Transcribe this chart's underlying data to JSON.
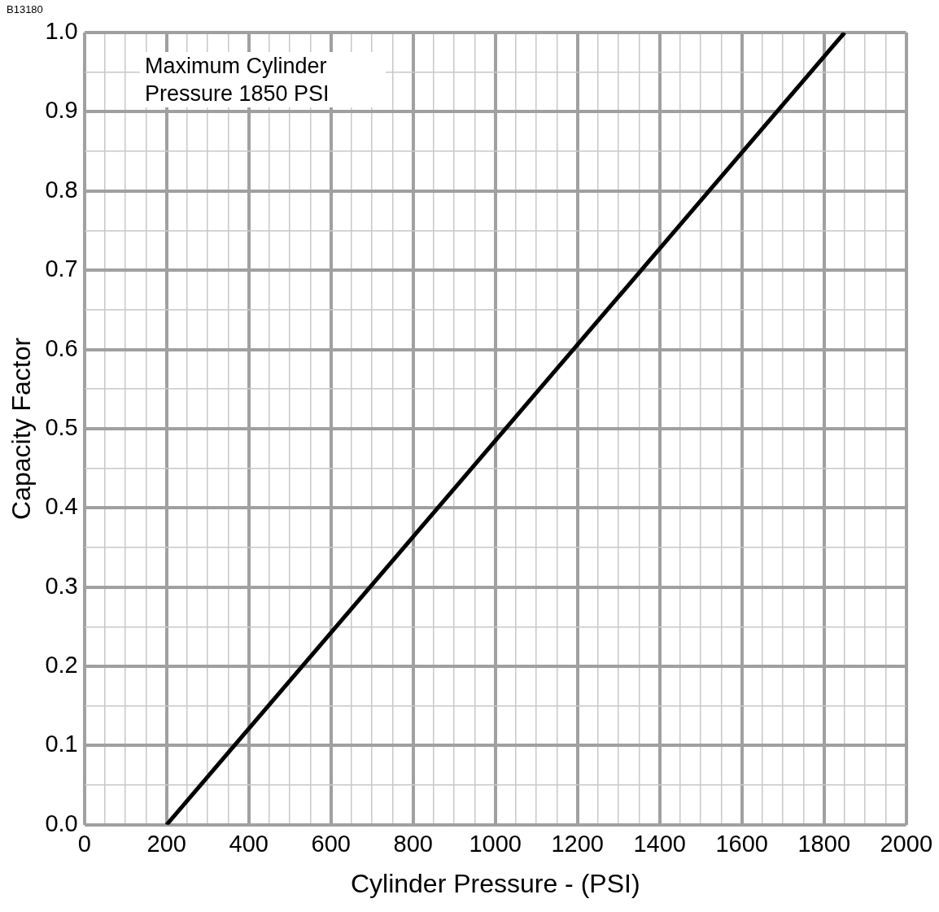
{
  "chart_data": {
    "type": "line",
    "xlabel": "Cylinder Pressure - (PSI)",
    "ylabel": "Capacity Factor",
    "annotations": [
      "B13180",
      "Maximum Cylinder Pressure 1850 PSI"
    ],
    "series": [
      {
        "x": [
          200,
          1850
        ],
        "values": [
          0,
          1.0
        ],
        "color": "#000000"
      }
    ],
    "xlim": [
      0,
      2000
    ],
    "xticks": [
      0,
      {
        "value": 50,
        "label": null
      },
      {
        "value": 100,
        "label": null
      },
      {
        "value": 150,
        "label": null
      },
      200,
      {
        "value": 250,
        "label": null
      },
      {
        "value": 300,
        "label": null
      },
      {
        "value": 350,
        "label": null
      },
      400,
      {
        "value": 450,
        "label": null
      },
      {
        "value": 500,
        "label": null
      },
      {
        "value": 550,
        "label": null
      },
      600,
      {
        "value": 650,
        "label": null
      },
      {
        "value": 700,
        "label": null
      },
      {
        "value": 750,
        "label": null
      },
      800,
      {
        "value": 850,
        "label": null
      },
      {
        "value": 900,
        "label": null
      },
      {
        "value": 950,
        "label": null
      },
      1000,
      {
        "value": 1050,
        "label": null
      },
      {
        "value": 1100,
        "label": null
      },
      {
        "value": 1150,
        "label": null
      },
      1200,
      {
        "value": 1250,
        "label": null
      },
      {
        "value": 1300,
        "label": null
      },
      {
        "value": 1350,
        "label": null
      },
      1400,
      {
        "value": 1450,
        "label": null
      },
      {
        "value": 1500,
        "label": null
      },
      {
        "value": 1550,
        "label": null
      },
      1600,
      {
        "value": 1650,
        "label": null
      },
      {
        "value": 1700,
        "label": null
      },
      {
        "value": 1750,
        "label": null
      },
      1800,
      {
        "value": 1850,
        "label": null
      },
      {
        "value": 1900,
        "label": null
      },
      {
        "value": 1950,
        "label": null
      },
      2000
    ],
    "ylim": [
      0,
      1.0
    ],
    "yticks": [
      {
        "value": 0,
        "label": "0.0"
      },
      {
        "value": 0.05,
        "label": null
      },
      {
        "value": 0.1,
        "label": "0.1"
      },
      {
        "value": 0.15,
        "label": null
      },
      {
        "value": 0.2,
        "label": "0.2"
      },
      {
        "value": 0.25,
        "label": null
      },
      {
        "value": 0.3,
        "label": "0.3"
      },
      {
        "value": 0.35,
        "label": null
      },
      {
        "value": 0.4,
        "label": "0.4"
      },
      {
        "value": 0.45,
        "label": null
      },
      {
        "value": 0.5,
        "label": "0.5"
      },
      {
        "value": 0.55,
        "label": null
      },
      {
        "value": 0.6,
        "label": "0.6"
      },
      {
        "value": 0.65,
        "label": null
      },
      {
        "value": 0.7,
        "label": "0.7"
      },
      {
        "value": 0.75,
        "label": null
      },
      {
        "value": 0.8,
        "label": "0.8"
      },
      {
        "value": 0.85,
        "label": null
      },
      {
        "value": 0.9,
        "label": "0.9"
      },
      {
        "value": 0.95,
        "label": null
      },
      {
        "value": 1.0,
        "label": "1.0"
      }
    ],
    "grid": true,
    "marker": "none",
    "line_style": "solid"
  }
}
